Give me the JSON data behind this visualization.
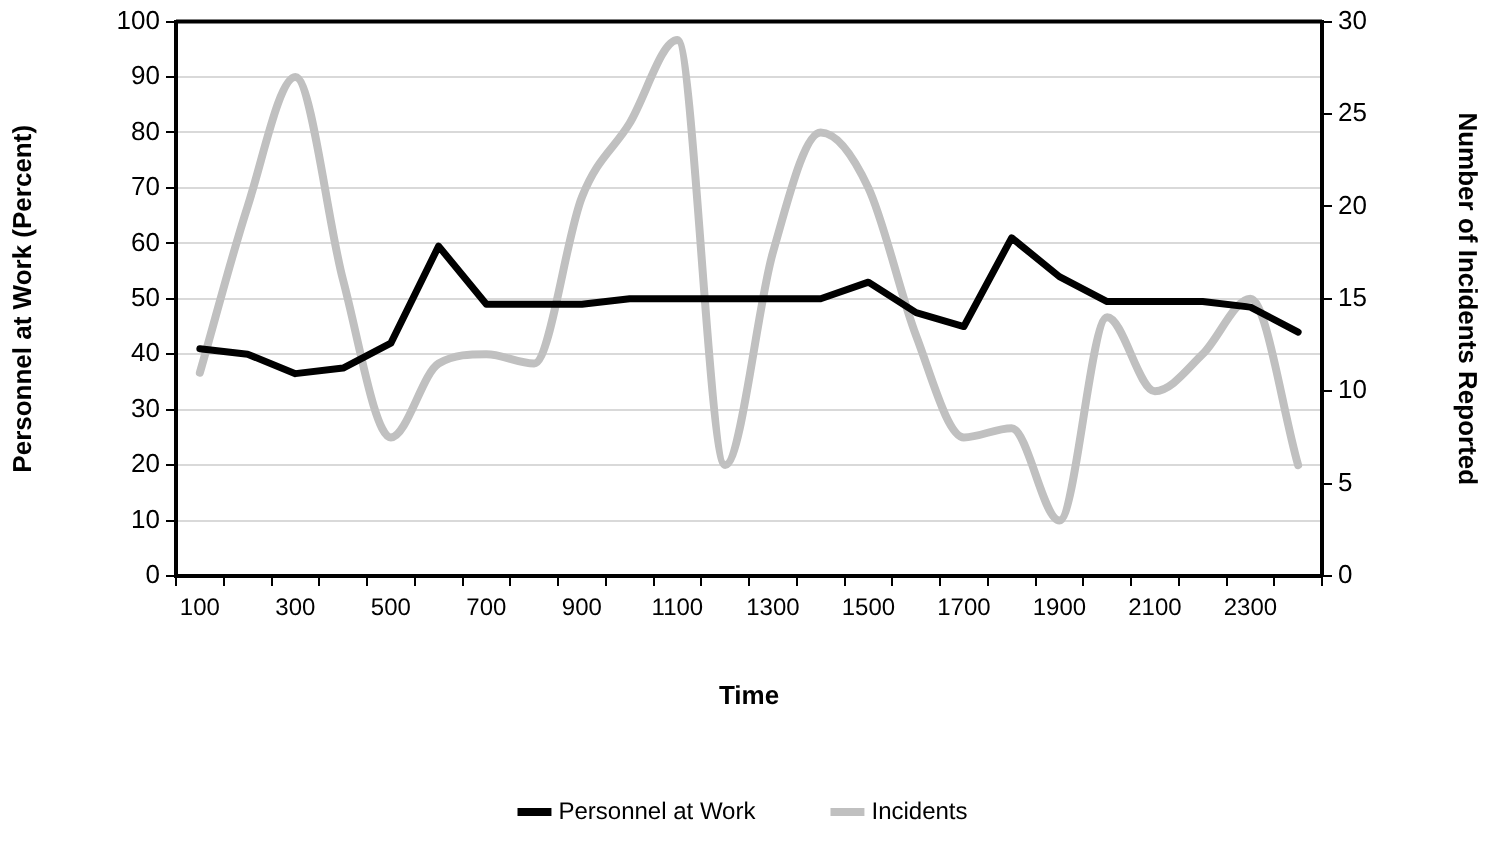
{
  "chart_data": {
    "type": "line",
    "xlabel": "Time",
    "ylabel": "Personnel at Work (Percent)",
    "y2label": "Number of Incidents Reported",
    "categories": [
      "100",
      null,
      "300",
      null,
      "500",
      null,
      "700",
      null,
      "900",
      null,
      "1100",
      null,
      "1300",
      null,
      "1500",
      null,
      "1700",
      null,
      "1900",
      null,
      "2100",
      null,
      "2300",
      null
    ],
    "series": [
      {
        "name": "Personnel at Work",
        "color": "#000000",
        "values": [
          41,
          40,
          36.5,
          37.5,
          42,
          59.5,
          49,
          49,
          49,
          50,
          50,
          50,
          50,
          50,
          53,
          47.5,
          45,
          61,
          54,
          49.5,
          49.5,
          49.5,
          48.5,
          44
        ]
      },
      {
        "name": "Incidents",
        "color": "#c0c0c0",
        "axis": "y2",
        "values": [
          11,
          20,
          27,
          16,
          7.5,
          11.5,
          12,
          11.5,
          20.5,
          24.5,
          29,
          6,
          17.5,
          24,
          21,
          13,
          7.5,
          8,
          3,
          14,
          10,
          12,
          15,
          6
        ]
      }
    ],
    "ylim": [
      0,
      100
    ],
    "yticks": [
      0,
      10,
      20,
      30,
      40,
      50,
      60,
      70,
      80,
      90,
      100
    ],
    "y2lim": [
      0,
      30
    ],
    "y2ticks": [
      0,
      5,
      10,
      15,
      20,
      25,
      30
    ],
    "grid": "y",
    "legend": "bottom",
    "marker": "none",
    "line_style": "solid"
  }
}
